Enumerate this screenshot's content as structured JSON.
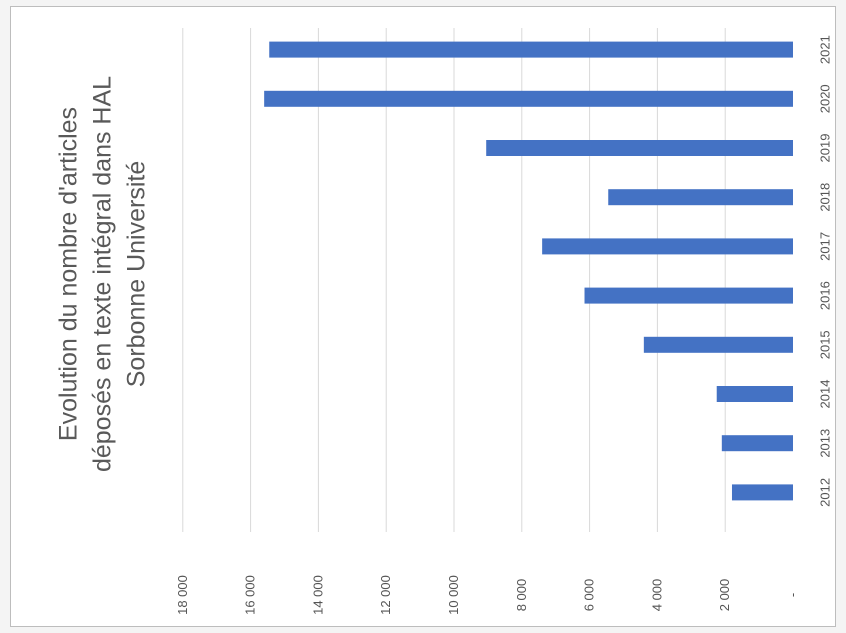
{
  "chart_data": {
    "type": "bar",
    "orientation": "rotated-90-clockwise",
    "title_lines": [
      "Evolution du nombre d'articles",
      "déposés en texte intégral dans HAL",
      "Sorbonne Université"
    ],
    "categories": [
      "2012",
      "2013",
      "2014",
      "2015",
      "2016",
      "2017",
      "2018",
      "2019",
      "2020",
      "2021"
    ],
    "values": [
      1800,
      2100,
      2250,
      4400,
      6150,
      7400,
      5450,
      9050,
      15600,
      15450
    ],
    "value_ticks": [
      {
        "value": 0,
        "label": "-"
      },
      {
        "value": 2000,
        "label": "2 000"
      },
      {
        "value": 4000,
        "label": "4 000"
      },
      {
        "value": 6000,
        "label": "6 000"
      },
      {
        "value": 8000,
        "label": "8 000"
      },
      {
        "value": 10000,
        "label": "10 000"
      },
      {
        "value": 12000,
        "label": "12 000"
      },
      {
        "value": 14000,
        "label": "14 000"
      },
      {
        "value": 16000,
        "label": "16 000"
      },
      {
        "value": 18000,
        "label": "18 000"
      }
    ],
    "ylim": [
      0,
      18000
    ],
    "grid": true,
    "bar_color": "#4472c4",
    "gridline_color": "#d9d9d9"
  }
}
